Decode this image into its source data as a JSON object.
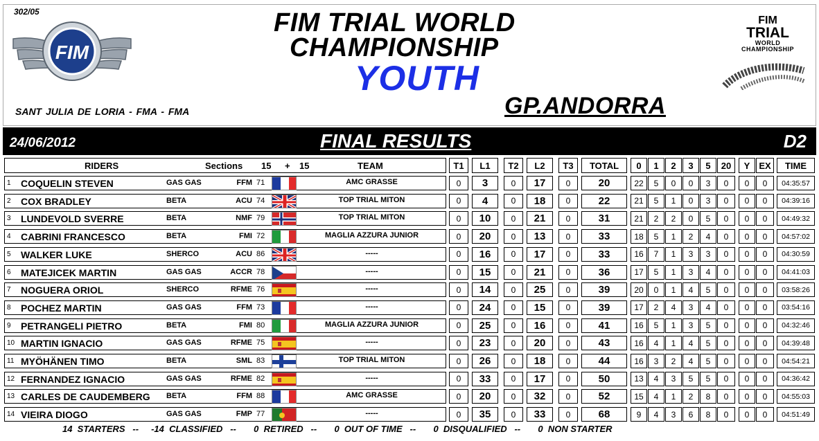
{
  "doc_number": "302/05",
  "logo_text": "FIM",
  "title_line1": "FIM TRIAL WORLD",
  "title_line2": "CHAMPIONSHIP",
  "title_line3": "YOUTH",
  "location": "SANT JULIA DE LORIA  -  FMA  -  FMA",
  "gp": "GP.ANDORRA",
  "brand": {
    "line1": "FIM",
    "line2": "TRIAL",
    "line3": "WORLD",
    "line4": "CHAMPIONSHIP"
  },
  "date": "24/06/2012",
  "final_results": "FINAL RESULTS",
  "category": "D2",
  "headers": {
    "riders": "RIDERS",
    "sections": "Sections",
    "s1": "15",
    "plus": "+",
    "s2": "15",
    "team": "TEAM",
    "t1": "T1",
    "l1": "L1",
    "t2": "T2",
    "l2": "L2",
    "t3": "T3",
    "total": "TOTAL",
    "c0": "0",
    "c1": "1",
    "c2": "2",
    "c3": "3",
    "c5": "5",
    "c20": "20",
    "y": "Y",
    "ex": "EX",
    "time": "TIME"
  },
  "rows": [
    {
      "pos": "1",
      "name": "COQUELIN STEVEN",
      "bike": "GAS GAS",
      "fed": "FFM",
      "num": "71",
      "flag": "france",
      "team": "AMC GRASSE",
      "t1": "0",
      "l1": "3",
      "t2": "0",
      "l2": "17",
      "t3": "0",
      "total": "20",
      "c0": "22",
      "c1": "5",
      "c2": "0",
      "c3": "0",
      "c5": "3",
      "c20": "0",
      "y": "0",
      "ex": "0",
      "time": "04:35:57"
    },
    {
      "pos": "2",
      "name": "COX BRADLEY",
      "bike": "BETA",
      "fed": "ACU",
      "num": "74",
      "flag": "uk",
      "team": "TOP TRIAL MITON",
      "t1": "0",
      "l1": "4",
      "t2": "0",
      "l2": "18",
      "t3": "0",
      "total": "22",
      "c0": "21",
      "c1": "5",
      "c2": "1",
      "c3": "0",
      "c5": "3",
      "c20": "0",
      "y": "0",
      "ex": "0",
      "time": "04:39:16"
    },
    {
      "pos": "3",
      "name": "LUNDEVOLD SVERRE",
      "bike": "BETA",
      "fed": "NMF",
      "num": "79",
      "flag": "norway",
      "team": "TOP TRIAL MITON",
      "t1": "0",
      "l1": "10",
      "t2": "0",
      "l2": "21",
      "t3": "0",
      "total": "31",
      "c0": "21",
      "c1": "2",
      "c2": "2",
      "c3": "0",
      "c5": "5",
      "c20": "0",
      "y": "0",
      "ex": "0",
      "time": "04:49:32"
    },
    {
      "pos": "4",
      "name": "CABRINI FRANCESCO",
      "bike": "BETA",
      "fed": "FMI",
      "num": "72",
      "flag": "italy",
      "team": "MAGLIA AZZURA JUNIOR",
      "t1": "0",
      "l1": "20",
      "t2": "0",
      "l2": "13",
      "t3": "0",
      "total": "33",
      "c0": "18",
      "c1": "5",
      "c2": "1",
      "c3": "2",
      "c5": "4",
      "c20": "0",
      "y": "0",
      "ex": "0",
      "time": "04:57:02"
    },
    {
      "pos": "5",
      "name": "WALKER LUKE",
      "bike": "SHERCO",
      "fed": "ACU",
      "num": "86",
      "flag": "uk",
      "team": "-----",
      "t1": "0",
      "l1": "16",
      "t2": "0",
      "l2": "17",
      "t3": "0",
      "total": "33",
      "c0": "16",
      "c1": "7",
      "c2": "1",
      "c3": "3",
      "c5": "3",
      "c20": "0",
      "y": "0",
      "ex": "0",
      "time": "04:30:59"
    },
    {
      "pos": "6",
      "name": "MATEJICEK MARTIN",
      "bike": "GAS GAS",
      "fed": "ACCR",
      "num": "78",
      "flag": "czech",
      "team": "-----",
      "t1": "0",
      "l1": "15",
      "t2": "0",
      "l2": "21",
      "t3": "0",
      "total": "36",
      "c0": "17",
      "c1": "5",
      "c2": "1",
      "c3": "3",
      "c5": "4",
      "c20": "0",
      "y": "0",
      "ex": "0",
      "time": "04:41:03"
    },
    {
      "pos": "7",
      "name": "NOGUERA ORIOL",
      "bike": "SHERCO",
      "fed": "RFME",
      "num": "76",
      "flag": "spain",
      "team": "-----",
      "t1": "0",
      "l1": "14",
      "t2": "0",
      "l2": "25",
      "t3": "0",
      "total": "39",
      "c0": "20",
      "c1": "0",
      "c2": "1",
      "c3": "4",
      "c5": "5",
      "c20": "0",
      "y": "0",
      "ex": "0",
      "time": "03:58:26"
    },
    {
      "pos": "8",
      "name": "POCHEZ MARTIN",
      "bike": "GAS GAS",
      "fed": "FFM",
      "num": "73",
      "flag": "france",
      "team": "-----",
      "t1": "0",
      "l1": "24",
      "t2": "0",
      "l2": "15",
      "t3": "0",
      "total": "39",
      "c0": "17",
      "c1": "2",
      "c2": "4",
      "c3": "3",
      "c5": "4",
      "c20": "0",
      "y": "0",
      "ex": "0",
      "time": "03:54:16"
    },
    {
      "pos": "9",
      "name": "PETRANGELI PIETRO",
      "bike": "BETA",
      "fed": "FMI",
      "num": "80",
      "flag": "italy",
      "team": "MAGLIA AZZURA JUNIOR",
      "t1": "0",
      "l1": "25",
      "t2": "0",
      "l2": "16",
      "t3": "0",
      "total": "41",
      "c0": "16",
      "c1": "5",
      "c2": "1",
      "c3": "3",
      "c5": "5",
      "c20": "0",
      "y": "0",
      "ex": "0",
      "time": "04:32:46"
    },
    {
      "pos": "10",
      "name": "MARTIN IGNACIO",
      "bike": "GAS GAS",
      "fed": "RFME",
      "num": "75",
      "flag": "spain",
      "team": "-----",
      "t1": "0",
      "l1": "23",
      "t2": "0",
      "l2": "20",
      "t3": "0",
      "total": "43",
      "c0": "16",
      "c1": "4",
      "c2": "1",
      "c3": "4",
      "c5": "5",
      "c20": "0",
      "y": "0",
      "ex": "0",
      "time": "04:39:48"
    },
    {
      "pos": "11",
      "name": "MYÖHÄNEN TIMO",
      "bike": "BETA",
      "fed": "SML",
      "num": "83",
      "flag": "finland",
      "team": "TOP TRIAL MITON",
      "t1": "0",
      "l1": "26",
      "t2": "0",
      "l2": "18",
      "t3": "0",
      "total": "44",
      "c0": "16",
      "c1": "3",
      "c2": "2",
      "c3": "4",
      "c5": "5",
      "c20": "0",
      "y": "0",
      "ex": "0",
      "time": "04:54:21"
    },
    {
      "pos": "12",
      "name": "FERNANDEZ IGNACIO",
      "bike": "GAS GAS",
      "fed": "RFME",
      "num": "82",
      "flag": "spain",
      "team": "-----",
      "t1": "0",
      "l1": "33",
      "t2": "0",
      "l2": "17",
      "t3": "0",
      "total": "50",
      "c0": "13",
      "c1": "4",
      "c2": "3",
      "c3": "5",
      "c5": "5",
      "c20": "0",
      "y": "0",
      "ex": "0",
      "time": "04:36:42"
    },
    {
      "pos": "13",
      "name": "CARLES DE CAUDEMBERG",
      "bike": "BETA",
      "fed": "FFM",
      "num": "88",
      "flag": "france",
      "team": "AMC GRASSE",
      "t1": "0",
      "l1": "20",
      "t2": "0",
      "l2": "32",
      "t3": "0",
      "total": "52",
      "c0": "15",
      "c1": "4",
      "c2": "1",
      "c3": "2",
      "c5": "8",
      "c20": "0",
      "y": "0",
      "ex": "0",
      "time": "04:55:03"
    },
    {
      "pos": "14",
      "name": "VIEIRA DIOGO",
      "bike": "GAS GAS",
      "fed": "FMP",
      "num": "77",
      "flag": "portugal",
      "team": "-----",
      "t1": "0",
      "l1": "35",
      "t2": "0",
      "l2": "33",
      "t3": "0",
      "total": "68",
      "c0": "9",
      "c1": "4",
      "c2": "3",
      "c3": "6",
      "c5": "8",
      "c20": "0",
      "y": "0",
      "ex": "0",
      "time": "04:51:49"
    }
  ],
  "footer": "14  STARTERS   --     -14  CLASSIFIED   --       0  RETIRED   --       0  OUT OF TIME   --       0  DISQUALIFIED   --       0  NON STARTER"
}
